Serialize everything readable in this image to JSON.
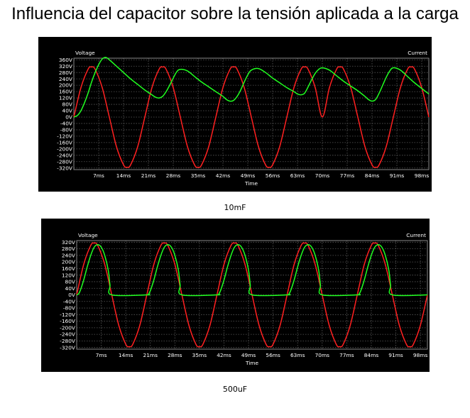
{
  "page": {
    "title": "Influencia del capacitor sobre la tensión aplicada a la carga"
  },
  "colors": {
    "background": "#000000",
    "grid": "#5a5a5a",
    "voltage_trace": "#ff2020",
    "current_trace": "#20ff20",
    "axis_text": "#ffffff"
  },
  "chart_data": [
    {
      "type": "line",
      "caption": "10mF",
      "left_axis_title": "Voltage",
      "right_axis_title": "Current",
      "xlabel": "Time",
      "x_unit": "ms",
      "xlim": [
        0,
        100
      ],
      "xticks": [
        7,
        14,
        21,
        28,
        35,
        42,
        49,
        56,
        63,
        70,
        77,
        84,
        91,
        98
      ],
      "xtick_labels": [
        "7ms",
        "14ms",
        "21ms",
        "28ms",
        "35ms",
        "42ms",
        "49ms",
        "56ms",
        "63ms",
        "70ms",
        "77ms",
        "84ms",
        "91ms",
        "98ms"
      ],
      "ylim": [
        -330,
        370
      ],
      "yticks": [
        360,
        320,
        280,
        240,
        200,
        160,
        120,
        80,
        40,
        0,
        -40,
        -80,
        -120,
        -160,
        -200,
        -240,
        -280,
        -320
      ],
      "ytick_labels": [
        "360V",
        "320V",
        "280V",
        "240V",
        "200V",
        "160V",
        "120V",
        "80V",
        "40V",
        "0V",
        "-40V",
        "-80V",
        "-120V",
        "-160V",
        "-200V",
        "-240V",
        "-280V",
        "-320V"
      ],
      "grid": true,
      "series": [
        {
          "color": "#ff2020",
          "x": [
            0,
            2,
            4,
            5,
            6,
            8,
            10,
            12,
            14,
            15,
            16,
            18,
            20,
            22,
            24,
            25,
            26,
            28,
            30,
            32,
            34,
            35,
            36,
            38,
            40,
            42,
            44,
            45,
            46,
            48,
            50,
            52,
            54,
            55,
            56,
            58,
            60,
            62,
            64,
            65,
            66,
            68,
            70,
            72,
            74,
            75,
            76,
            78,
            80,
            82,
            84,
            85,
            86,
            88,
            90,
            92,
            94,
            95,
            96,
            98,
            100
          ],
          "y": [
            0,
            185,
            300,
            315,
            300,
            185,
            0,
            -185,
            -300,
            -315,
            -300,
            -185,
            0,
            185,
            300,
            315,
            300,
            185,
            0,
            -185,
            -300,
            -315,
            -300,
            -185,
            0,
            185,
            300,
            315,
            300,
            185,
            0,
            -185,
            -300,
            -315,
            -300,
            -185,
            0,
            185,
            300,
            315,
            300,
            185,
            0,
            185,
            300,
            315,
            300,
            185,
            0,
            -185,
            -300,
            -315,
            -300,
            -185,
            0,
            185,
            300,
            315,
            300,
            185,
            0
          ]
        },
        {
          "color": "#20ff20",
          "x": [
            0,
            1,
            2,
            3,
            4,
            5,
            6,
            7,
            8,
            9,
            10,
            12,
            14,
            16,
            18,
            20,
            22,
            23,
            24,
            25,
            26,
            27,
            28,
            29,
            30,
            32,
            34,
            36,
            38,
            40,
            42,
            43,
            44,
            45,
            46,
            47,
            48,
            49,
            50,
            52,
            54,
            56,
            58,
            60,
            62,
            63,
            64,
            65,
            66,
            67,
            68,
            69,
            70,
            72,
            74,
            76,
            78,
            80,
            82,
            83,
            84,
            85,
            86,
            87,
            88,
            89,
            90,
            92,
            94,
            96,
            98,
            100
          ],
          "y": [
            0,
            10,
            40,
            90,
            150,
            220,
            280,
            330,
            365,
            375,
            360,
            320,
            280,
            240,
            205,
            170,
            140,
            125,
            120,
            130,
            160,
            200,
            245,
            285,
            300,
            290,
            255,
            220,
            190,
            160,
            130,
            110,
            100,
            105,
            130,
            170,
            220,
            265,
            295,
            305,
            280,
            245,
            215,
            185,
            160,
            145,
            140,
            150,
            190,
            235,
            275,
            300,
            310,
            295,
            260,
            225,
            195,
            165,
            130,
            110,
            100,
            110,
            150,
            200,
            250,
            290,
            310,
            295,
            255,
            215,
            180,
            145
          ]
        }
      ]
    },
    {
      "type": "line",
      "caption": "500uF",
      "left_axis_title": "Voltage",
      "right_axis_title": "Current",
      "xlabel": "Time",
      "x_unit": "ms",
      "xlim": [
        0,
        100
      ],
      "xticks": [
        7,
        14,
        21,
        28,
        35,
        42,
        49,
        56,
        63,
        70,
        77,
        84,
        91,
        98
      ],
      "xtick_labels": [
        "7ms",
        "14ms",
        "21ms",
        "28ms",
        "35ms",
        "42ms",
        "49ms",
        "56ms",
        "63ms",
        "70ms",
        "77ms",
        "84ms",
        "91ms",
        "98ms"
      ],
      "ylim": [
        -330,
        330
      ],
      "yticks": [
        320,
        280,
        240,
        200,
        160,
        120,
        80,
        40,
        0,
        -40,
        -80,
        -120,
        -160,
        -200,
        -240,
        -280,
        -320
      ],
      "ytick_labels": [
        "320V",
        "280V",
        "240V",
        "200V",
        "160V",
        "120V",
        "80V",
        "40V",
        "0V",
        "-40V",
        "-80V",
        "-120V",
        "-160V",
        "-200V",
        "-240V",
        "-280V",
        "-320V"
      ],
      "grid": true,
      "series": [
        {
          "color": "#ff2020",
          "x": [
            0,
            2,
            4,
            5,
            6,
            8,
            10,
            12,
            14,
            15,
            16,
            18,
            20,
            22,
            24,
            25,
            26,
            28,
            30,
            32,
            34,
            35,
            36,
            38,
            40,
            42,
            44,
            45,
            46,
            48,
            50,
            52,
            54,
            55,
            56,
            58,
            60,
            62,
            64,
            65,
            66,
            68,
            70,
            72,
            74,
            75,
            76,
            78,
            80,
            82,
            84,
            85,
            86,
            88,
            90,
            92,
            94,
            95,
            96,
            98,
            100
          ],
          "y": [
            0,
            185,
            300,
            315,
            300,
            185,
            0,
            -185,
            -300,
            -315,
            -300,
            -185,
            0,
            185,
            300,
            315,
            300,
            185,
            0,
            -185,
            -300,
            -315,
            -300,
            -185,
            0,
            185,
            300,
            315,
            300,
            185,
            0,
            -185,
            -300,
            -315,
            -300,
            -185,
            0,
            185,
            300,
            315,
            300,
            185,
            0,
            -185,
            -300,
            -315,
            -300,
            -185,
            0,
            185,
            300,
            315,
            300,
            185,
            0,
            -185,
            -300,
            -315,
            -300,
            -185,
            0
          ]
        },
        {
          "color": "#20ff20",
          "x": [
            0,
            0.5,
            1,
            2,
            3,
            4,
            5,
            6,
            7,
            8,
            9,
            9.5,
            10,
            20,
            20.5,
            21,
            22,
            23,
            24,
            25,
            26,
            27,
            28,
            29,
            29.5,
            30,
            40,
            40.5,
            41,
            42,
            43,
            44,
            45,
            46,
            47,
            48,
            49,
            49.5,
            50,
            60,
            60.5,
            61,
            62,
            63,
            64,
            65,
            66,
            67,
            68,
            69,
            69.5,
            70,
            80,
            80.5,
            81,
            82,
            83,
            84,
            85,
            86,
            87,
            88,
            89,
            89.5,
            90,
            100
          ],
          "y": [
            0,
            5,
            25,
            90,
            170,
            240,
            290,
            305,
            290,
            240,
            150,
            60,
            0,
            0,
            5,
            25,
            90,
            170,
            240,
            290,
            305,
            290,
            240,
            150,
            60,
            0,
            0,
            5,
            25,
            90,
            170,
            240,
            290,
            305,
            290,
            240,
            150,
            60,
            0,
            0,
            5,
            25,
            90,
            170,
            240,
            290,
            305,
            290,
            240,
            150,
            60,
            0,
            0,
            5,
            25,
            90,
            170,
            240,
            290,
            305,
            290,
            240,
            150,
            60,
            0,
            0
          ]
        }
      ]
    }
  ]
}
